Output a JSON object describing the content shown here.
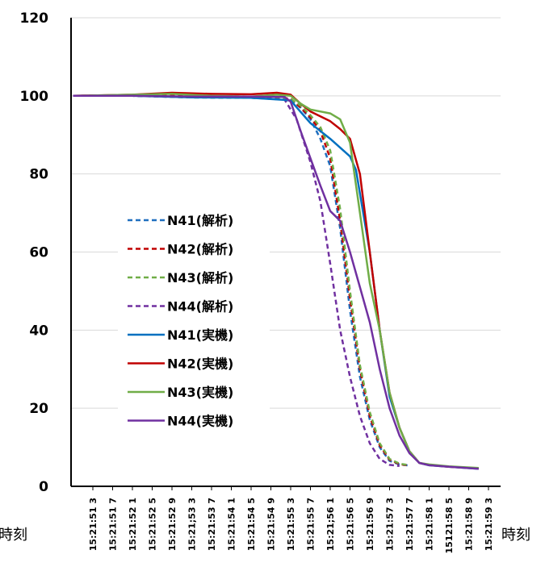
{
  "chart_data": {
    "type": "line",
    "title": "",
    "xlabel": "時刻",
    "ylabel": "",
    "ylim": [
      0,
      120
    ],
    "yticks": [
      0,
      20,
      40,
      60,
      80,
      100,
      120
    ],
    "grid": "horizontal",
    "legend_position": "center-left",
    "categories": [
      "15:21:51 3",
      "15:21:51 7",
      "15:21:52 1",
      "15:21:52 5",
      "15:21:52 9",
      "15:21;53 3",
      "15:21:53 7",
      "15:21:54 1",
      "15:21:54 5",
      "15:21:54 9",
      "15:21:55 3",
      "15:21:55 7",
      "15:21;56 1",
      "15:21:56 5",
      "15:21:56 9",
      "15:21:57 3",
      "15:21:57 7",
      "15:21:58 1",
      "15121:58 5",
      "15:21:58 9",
      "15:21:59 3"
    ],
    "x": [
      0,
      1,
      2,
      3,
      4,
      5,
      6,
      7,
      8,
      9,
      10,
      11,
      12,
      13,
      14,
      15,
      16,
      17,
      18,
      19,
      20
    ],
    "series": [
      {
        "name": "N41(解析)",
        "color": "#1f6fbf",
        "dash": true,
        "points": [
          [
            -1,
            100
          ],
          [
            2,
            100
          ],
          [
            5,
            99.6
          ],
          [
            8,
            99.5
          ],
          [
            10,
            99.0
          ],
          [
            10.5,
            97
          ],
          [
            11,
            94
          ],
          [
            11.5,
            89
          ],
          [
            12,
            82
          ],
          [
            12.5,
            66
          ],
          [
            13,
            45
          ],
          [
            13.5,
            28
          ],
          [
            14,
            17
          ],
          [
            14.5,
            10
          ],
          [
            15,
            6.5
          ],
          [
            15.5,
            5.6
          ],
          [
            16,
            5.3
          ]
        ]
      },
      {
        "name": "N42(解析)",
        "color": "#c00000",
        "dash": true,
        "points": [
          [
            -1,
            100
          ],
          [
            2,
            100.2
          ],
          [
            5,
            100
          ],
          [
            8,
            99.8
          ],
          [
            10,
            99.3
          ],
          [
            10.5,
            97
          ],
          [
            11,
            94.5
          ],
          [
            11.5,
            91
          ],
          [
            12,
            84
          ],
          [
            12.5,
            68
          ],
          [
            13,
            48
          ],
          [
            13.5,
            30
          ],
          [
            14,
            18
          ],
          [
            14.5,
            10.5
          ],
          [
            15,
            6.8
          ],
          [
            15.5,
            5.7
          ],
          [
            16,
            5.3
          ]
        ]
      },
      {
        "name": "N43(解析)",
        "color": "#70ad47",
        "dash": true,
        "points": [
          [
            -1,
            100
          ],
          [
            2,
            100
          ],
          [
            5,
            99.6
          ],
          [
            8,
            99.5
          ],
          [
            10,
            99.2
          ],
          [
            10.5,
            97.5
          ],
          [
            11,
            95
          ],
          [
            11.5,
            92
          ],
          [
            12,
            86
          ],
          [
            12.5,
            71
          ],
          [
            13,
            50
          ],
          [
            13.5,
            31
          ],
          [
            14,
            19
          ],
          [
            14.5,
            11
          ],
          [
            15,
            7
          ],
          [
            15.5,
            5.8
          ],
          [
            16,
            5.4
          ]
        ]
      },
      {
        "name": "N44(解析)",
        "color": "#7030a0",
        "dash": true,
        "points": [
          [
            -1,
            100
          ],
          [
            2,
            100
          ],
          [
            5,
            99.7
          ],
          [
            8,
            99.6
          ],
          [
            9.7,
            99
          ],
          [
            10.3,
            94
          ],
          [
            11,
            83
          ],
          [
            11.5,
            73
          ],
          [
            12,
            57
          ],
          [
            12.5,
            40
          ],
          [
            13,
            28
          ],
          [
            13.5,
            18
          ],
          [
            14,
            11
          ],
          [
            14.5,
            7
          ],
          [
            15,
            5.5
          ],
          [
            15.5,
            5.2
          ]
        ]
      },
      {
        "name": "N41(実機)",
        "color": "#0070c0",
        "dash": false,
        "points": [
          [
            -1,
            100
          ],
          [
            2,
            100
          ],
          [
            5,
            99.6
          ],
          [
            8,
            99.5
          ],
          [
            9.6,
            99
          ],
          [
            10,
            98.8
          ],
          [
            11,
            93
          ],
          [
            12,
            89
          ],
          [
            13,
            84.5
          ],
          [
            13.3,
            81
          ],
          [
            14,
            60
          ],
          [
            14.5,
            40
          ],
          [
            15,
            23
          ],
          [
            15.5,
            15
          ],
          [
            16,
            9
          ],
          [
            16.5,
            6
          ],
          [
            17,
            5.4
          ],
          [
            18,
            5
          ],
          [
            19.5,
            4.5
          ]
        ]
      },
      {
        "name": "N42(実機)",
        "color": "#c00000",
        "dash": false,
        "points": [
          [
            -1,
            100
          ],
          [
            2,
            100.3
          ],
          [
            4,
            100.8
          ],
          [
            6,
            100.5
          ],
          [
            8,
            100.4
          ],
          [
            9.3,
            100.8
          ],
          [
            10,
            100.3
          ],
          [
            10.5,
            98
          ],
          [
            11,
            96
          ],
          [
            12,
            93.5
          ],
          [
            12.5,
            91.5
          ],
          [
            13,
            89
          ],
          [
            13.5,
            80
          ],
          [
            14,
            60
          ],
          [
            14.5,
            40
          ],
          [
            15,
            24
          ],
          [
            15.5,
            15
          ],
          [
            16,
            9
          ],
          [
            16.5,
            6
          ],
          [
            17,
            5.5
          ],
          [
            18,
            5
          ],
          [
            19.5,
            4.6
          ]
        ]
      },
      {
        "name": "N43(実機)",
        "color": "#70ad47",
        "dash": false,
        "points": [
          [
            -1,
            100
          ],
          [
            2,
            100.3
          ],
          [
            4,
            100.5
          ],
          [
            6,
            100
          ],
          [
            8,
            99.8
          ],
          [
            9.3,
            100.3
          ],
          [
            10,
            100
          ],
          [
            10.5,
            98
          ],
          [
            11,
            96.5
          ],
          [
            12,
            95.5
          ],
          [
            12.5,
            94
          ],
          [
            13,
            88
          ],
          [
            13.5,
            70
          ],
          [
            14,
            52
          ],
          [
            14.5,
            40
          ],
          [
            15,
            24
          ],
          [
            15.5,
            15
          ],
          [
            16,
            9
          ],
          [
            16.5,
            6
          ],
          [
            17,
            5.6
          ],
          [
            18,
            5.1
          ],
          [
            19.5,
            4.7
          ]
        ]
      },
      {
        "name": "N44(実機)",
        "color": "#7030a0",
        "dash": false,
        "points": [
          [
            -1,
            100
          ],
          [
            2,
            100
          ],
          [
            5,
            99.8
          ],
          [
            8,
            99.8
          ],
          [
            9.7,
            99.7
          ],
          [
            10,
            98.5
          ],
          [
            10.5,
            91
          ],
          [
            11,
            84
          ],
          [
            11.5,
            77
          ],
          [
            12,
            70.5
          ],
          [
            12.5,
            68
          ],
          [
            13,
            60
          ],
          [
            13.5,
            51
          ],
          [
            14,
            42
          ],
          [
            14.5,
            30
          ],
          [
            15,
            20
          ],
          [
            15.5,
            13
          ],
          [
            16,
            8.5
          ],
          [
            16.5,
            6
          ],
          [
            17,
            5.4
          ],
          [
            18,
            5
          ],
          [
            19.5,
            4.5
          ]
        ]
      }
    ]
  }
}
